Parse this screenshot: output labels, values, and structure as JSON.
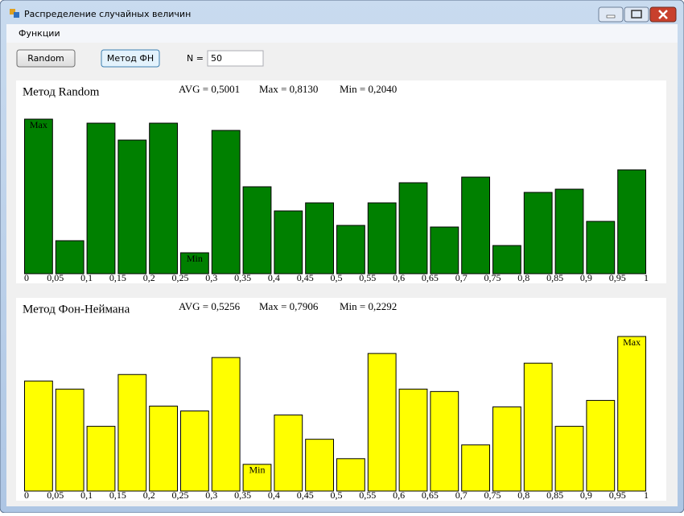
{
  "window": {
    "title": "Распределение случайных величин",
    "menu": [
      "Функции"
    ],
    "buttons": [
      "Random",
      "Метод ФН"
    ],
    "n_label": "N =",
    "n_value": "50"
  },
  "chart_data": [
    {
      "type": "histogram",
      "title": "Метод Random",
      "annotations": [
        "AVG = 0,5001",
        "Max = 0,8130",
        "Min = 0,2040"
      ],
      "bins": [
        0,
        0.05,
        0.1,
        0.15,
        0.2,
        0.25,
        0.3,
        0.35,
        0.4,
        0.45,
        0.5,
        0.55,
        0.6,
        0.65,
        0.7,
        0.75,
        0.8,
        0.85,
        0.9,
        0.95,
        1
      ],
      "values": [
        192,
        41,
        187,
        166,
        187,
        26,
        178,
        108,
        78,
        88,
        60,
        88,
        113,
        58,
        120,
        35,
        101,
        105,
        65,
        129
      ],
      "color": "#008000",
      "extremes": {
        "max": "Max",
        "min": "Min"
      },
      "xticks": [
        0,
        {
          "value": 0.05,
          "label": "0,05"
        },
        {
          "value": 0.1,
          "label": "0,1"
        },
        {
          "value": 0.15,
          "label": "0,15"
        },
        {
          "value": 0.2,
          "label": "0,2"
        },
        {
          "value": 0.25,
          "label": "0,25"
        },
        {
          "value": 0.3,
          "label": "0,3"
        },
        {
          "value": 0.35,
          "label": "0,35"
        },
        {
          "value": 0.4,
          "label": "0,4"
        },
        {
          "value": 0.45,
          "label": "0,45"
        },
        {
          "value": 0.5,
          "label": "0,5"
        },
        {
          "value": 0.55,
          "label": "0,55"
        },
        {
          "value": 0.6,
          "label": "0,6"
        },
        {
          "value": 0.65,
          "label": "0,65"
        },
        {
          "value": 0.7,
          "label": "0,7"
        },
        {
          "value": 0.75,
          "label": "0,75"
        },
        {
          "value": 0.8,
          "label": "0,8"
        },
        {
          "value": 0.85,
          "label": "0,85"
        },
        {
          "value": 0.9,
          "label": "0,9"
        },
        {
          "value": 0.95,
          "label": "0,95"
        },
        1
      ],
      "xlim": [
        0,
        1
      ]
    },
    {
      "type": "histogram",
      "title": "Метод Фон-Неймана",
      "annotations": [
        "AVG = 0,5256",
        "Max = 0,7906",
        "Min = 0,2292"
      ],
      "bins": [
        0,
        0.05,
        0.1,
        0.15,
        0.2,
        0.25,
        0.3,
        0.35,
        0.4,
        0.45,
        0.5,
        0.55,
        0.6,
        0.65,
        0.7,
        0.75,
        0.8,
        0.85,
        0.9,
        0.95,
        1
      ],
      "values": [
        136,
        126,
        80,
        144,
        105,
        99,
        165,
        33,
        94,
        64,
        40,
        170,
        126,
        123,
        57,
        104,
        158,
        80,
        112,
        191
      ],
      "color": "#ffff00",
      "extremes": {
        "max": "Max",
        "min": "Min"
      },
      "xticks": [
        0,
        {
          "value": 0.05,
          "label": "0,05"
        },
        {
          "value": 0.1,
          "label": "0,1"
        },
        {
          "value": 0.15,
          "label": "0,15"
        },
        {
          "value": 0.2,
          "label": "0,2"
        },
        {
          "value": 0.25,
          "label": "0,25"
        },
        {
          "value": 0.3,
          "label": "0,3"
        },
        {
          "value": 0.35,
          "label": "0,35"
        },
        {
          "value": 0.4,
          "label": "0,4"
        },
        {
          "value": 0.45,
          "label": "0,45"
        },
        {
          "value": 0.5,
          "label": "0,5"
        },
        {
          "value": 0.55,
          "label": "0,55"
        },
        {
          "value": 0.6,
          "label": "0,6"
        },
        {
          "value": 0.65,
          "label": "0,65"
        },
        {
          "value": 0.7,
          "label": "0,7"
        },
        {
          "value": 0.75,
          "label": "0,75"
        },
        {
          "value": 0.8,
          "label": "0,8"
        },
        {
          "value": 0.85,
          "label": "0,85"
        },
        {
          "value": 0.9,
          "label": "0,9"
        },
        {
          "value": 0.95,
          "label": "0,95"
        },
        1
      ],
      "xlim": [
        0,
        1
      ]
    }
  ]
}
